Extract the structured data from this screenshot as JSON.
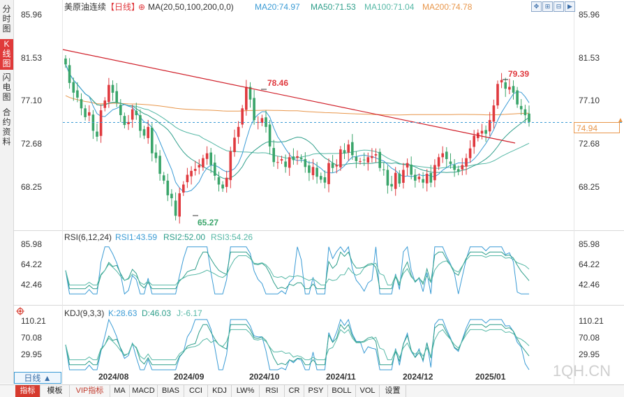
{
  "sidebar": {
    "tabs": [
      "分时图",
      "K线图",
      "闪电图",
      "合约资料"
    ]
  },
  "header": {
    "title": "美原油连续",
    "period": "【日线】",
    "ma_label": "MA(20,50,100,200,0,0)",
    "ma20": "MA20:74.97",
    "ma50": "MA50:71.53",
    "ma100": "MA100:71.04",
    "ma200": "MA200:74.78"
  },
  "toolbar": {
    "btn1": "✥",
    "btn2": "⊞",
    "btn3": "⊟",
    "btn4": "▶"
  },
  "price_axis": {
    "labels": [
      "85.96",
      "81.53",
      "77.10",
      "72.68",
      "68.25"
    ],
    "current": "74.94"
  },
  "annotations": {
    "high1": "78.46",
    "high2": "79.39",
    "low1": "65.27"
  },
  "rsi": {
    "label": "RSI(6,12,24)",
    "rsi1": "RSI1:43.59",
    "rsi2": "RSI2:52.00",
    "rsi3": "RSI3:54.26",
    "axis": [
      "85.98",
      "64.22",
      "42.46"
    ]
  },
  "kdj": {
    "label": "KDJ(9,3,3)",
    "k": "K:28.63",
    "d": "D:46.03",
    "j": "J:-6.17",
    "axis": [
      "110.21",
      "70.08",
      "29.95"
    ]
  },
  "x_axis": [
    "2024/08",
    "2024/09",
    "2024/10",
    "2024/11",
    "2024/12",
    "2025/01"
  ],
  "period_selector": "日线 ▲",
  "watermark": "1QH.CN",
  "bottom_tabs": [
    "指标",
    "模板",
    "VIP指标",
    "MA",
    "MACD",
    "BIAS",
    "CCI",
    "KDJ",
    "LW%",
    "RSI",
    "CR",
    "PSY",
    "BOLL",
    "VOL",
    "设置"
  ],
  "colors": {
    "up": "#e0393e",
    "down": "#3aa56a",
    "ma20": "#3a9bd5",
    "ma50": "#2e9e8a",
    "ma100": "#56b8a6",
    "ma200": "#e8964a",
    "trend": "#d0202a",
    "current": "#e8964a"
  },
  "price_series": [
    80.8,
    78.9,
    77.9,
    77.4,
    76.3,
    75.4,
    75.9,
    74.0,
    73.4,
    76.1,
    77.1,
    78.7,
    77.9,
    76.9,
    75.6,
    74.6,
    74.9,
    76.2,
    75.6,
    74.0,
    73.5,
    74.4,
    71.7,
    71.2,
    69.6,
    68.9,
    67.4,
    67.1,
    65.3,
    67.6,
    68.5,
    69.5,
    69.9,
    70.1,
    70.5,
    71.2,
    71.7,
    70.5,
    69.4,
    68.5,
    68.1,
    69.2,
    71.9,
    73.3,
    74.4,
    76.3,
    78.5,
    77.2,
    75.1,
    74.9,
    75.3,
    74.4,
    72.4,
    70.8,
    70.8,
    71.1,
    70.3,
    71.3,
    71.0,
    71.4,
    71.1,
    70.3,
    69.7,
    70.3,
    69.3,
    69.0,
    68.7,
    70.7,
    70.2,
    70.5,
    72.1,
    71.7,
    72.6,
    71.5,
    70.9,
    70.9,
    71.0,
    71.3,
    71.4,
    71.6,
    70.2,
    70.0,
    68.4,
    68.3,
    69.7,
    68.6,
    70.0,
    70.7,
    69.5,
    68.9,
    69.3,
    68.7,
    69.6,
    68.7,
    70.5,
    71.3,
    71.7,
    71.1,
    70.6,
    70.0,
    69.8,
    70.5,
    71.2,
    72.2,
    73.5,
    73.8,
    74.0,
    73.7,
    75.1,
    76.6,
    78.8,
    79.2,
    78.3,
    78.5,
    77.9,
    76.7,
    76.2,
    75.6,
    74.9
  ]
}
